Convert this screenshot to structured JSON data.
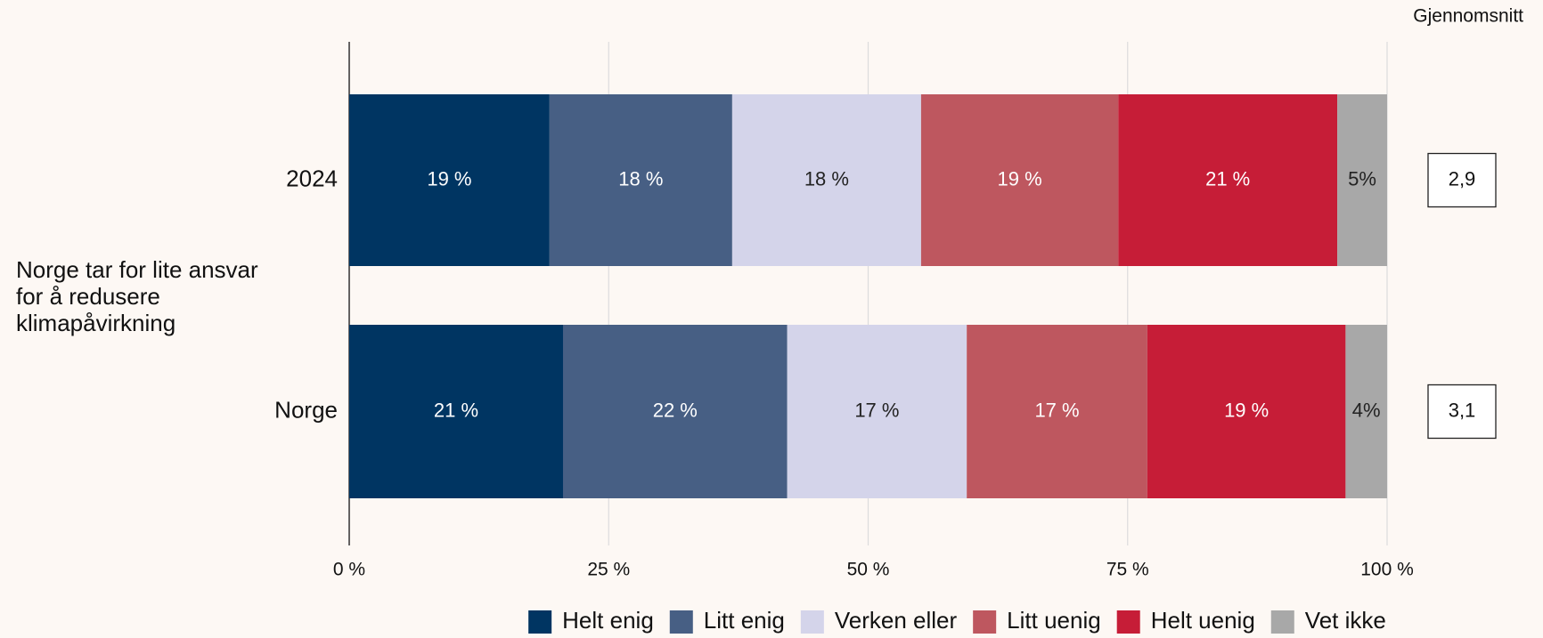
{
  "chart_data": {
    "type": "stacked-bar-horizontal",
    "y_axis_label": "Norge tar for lite ansvar for å redusere klimapåvirkning",
    "categories": [
      "2024",
      "Norge"
    ],
    "series": [
      {
        "name": "Helt enig",
        "color": "#003562",
        "values": [
          19.3,
          20.6
        ],
        "value_labels": [
          "19 %",
          "21 %"
        ]
      },
      {
        "name": "Litt enig",
        "color": "#475f84",
        "values": [
          17.6,
          21.6
        ],
        "value_labels": [
          "18 %",
          "22 %"
        ]
      },
      {
        "name": "Verken eller",
        "color": "#d4d4ea",
        "values": [
          18.2,
          17.3
        ],
        "value_labels": [
          "18 %",
          "17 %"
        ]
      },
      {
        "name": "Litt uenig",
        "color": "#be575f",
        "values": [
          19.0,
          17.4
        ],
        "value_labels": [
          "19 %",
          "17 %"
        ]
      },
      {
        "name": "Helt uenig",
        "color": "#c61d37",
        "values": [
          21.1,
          19.1
        ],
        "value_labels": [
          "21 %",
          "19 %"
        ]
      },
      {
        "name": "Vet ikke",
        "color": "#a8a8a8",
        "values": [
          4.8,
          4.0
        ],
        "value_labels": [
          "5%",
          "4%"
        ]
      }
    ],
    "average_title": "Gjennomsnitt",
    "averages": [
      2.9,
      3.1
    ],
    "average_labels": [
      "2,9",
      "3,1"
    ],
    "xlim": [
      0,
      100
    ],
    "xticks": [
      {
        "value": 0,
        "label": "0 %"
      },
      {
        "value": 25,
        "label": "25 %"
      },
      {
        "value": 50,
        "label": "50 %"
      },
      {
        "value": 75,
        "label": "75 %"
      },
      {
        "value": 100,
        "label": "100 %"
      }
    ],
    "grid": true,
    "legend": "bottom"
  }
}
